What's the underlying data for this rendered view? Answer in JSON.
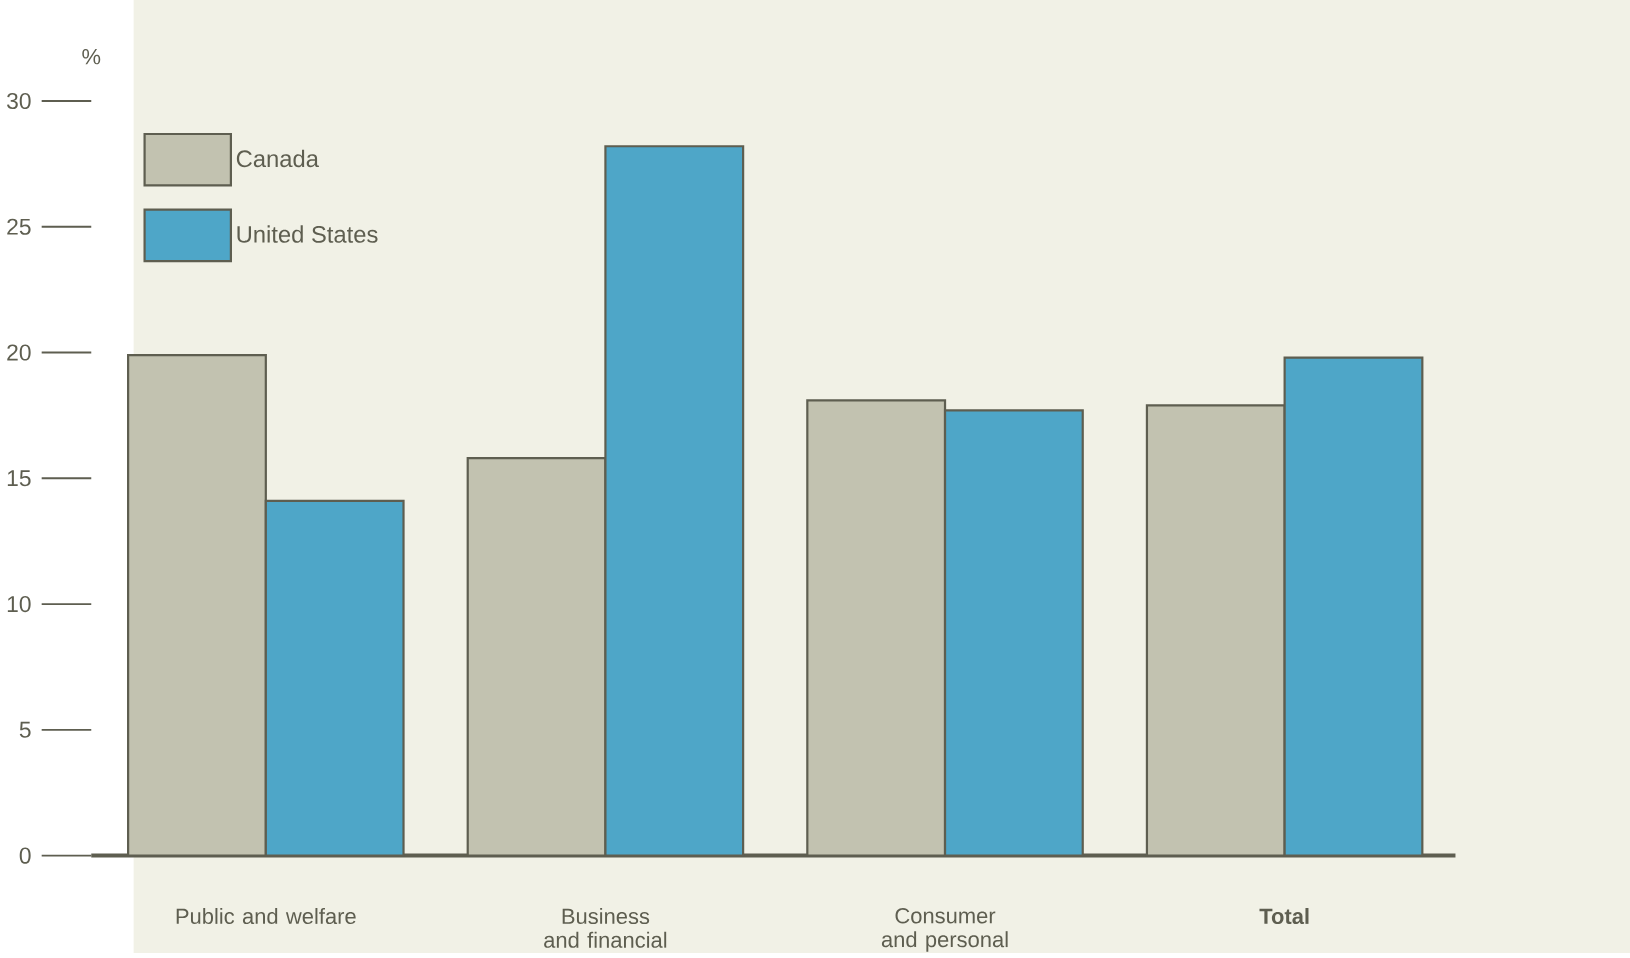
{
  "chart_data": {
    "type": "bar",
    "ylabel": "%",
    "categories": [
      "Public and welfare",
      "Business and financial",
      "Consumer and personal",
      "**Total**"
    ],
    "series": [
      {
        "name": "Canada",
        "color": "#c2c2b0",
        "values": [
          19.9,
          15.8,
          18.1,
          17.9
        ]
      },
      {
        "name": "United States",
        "color": "#4ea6c8",
        "values": [
          14.1,
          28.2,
          17.7,
          19.8
        ]
      }
    ],
    "ylim": [
      0,
      30
    ],
    "yticks": [
      0,
      5,
      10,
      15,
      20,
      25,
      30
    ],
    "legend": "top left"
  }
}
